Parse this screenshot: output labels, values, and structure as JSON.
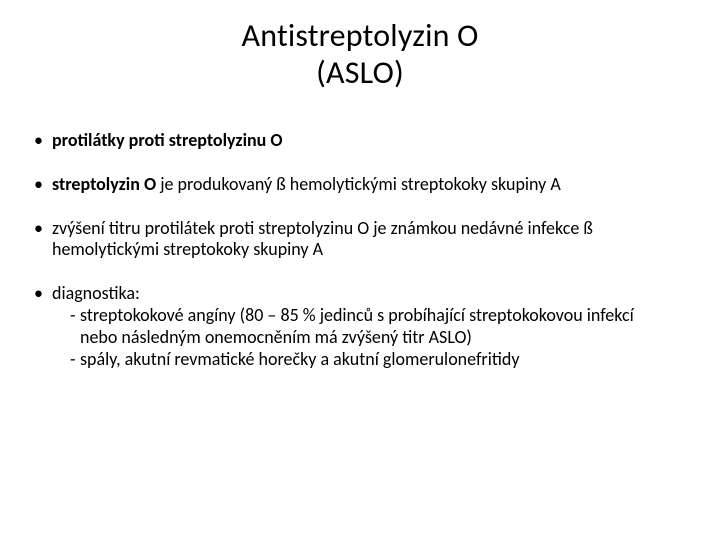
{
  "colors": {
    "background": "#ffffff",
    "text": "#000000"
  },
  "typography": {
    "title_fontsize_pt": 24,
    "body_fontsize_pt": 14,
    "font_family": "Calibri"
  },
  "title": {
    "line1": "Antistreptolyzin O",
    "line2": "(ASLO)"
  },
  "bullets": [
    {
      "bold_lead": "protilátky proti streptolyzinu O",
      "rest": ""
    },
    {
      "bold_lead": "streptolyzin O",
      "rest": " je produkovaný ß hemolytickými streptokoky skupiny A"
    },
    {
      "bold_lead": "",
      "rest": "zvýšení titru protilátek proti streptolyzinu O je známkou nedávné infekce ß hemolytickými streptokoky skupiny A"
    },
    {
      "bold_lead": "",
      "rest": "diagnostika:",
      "sub": [
        "streptokokové angíny (80 – 85 % jedinců s probíhající streptokokovou infekcí",
        "nebo následným onemocněním má zvýšený titr ASLO)",
        "spály, akutní revmatické horečky a akutní glomerulonefritidy"
      ],
      "sub_is_dash": [
        true,
        false,
        true
      ]
    }
  ]
}
